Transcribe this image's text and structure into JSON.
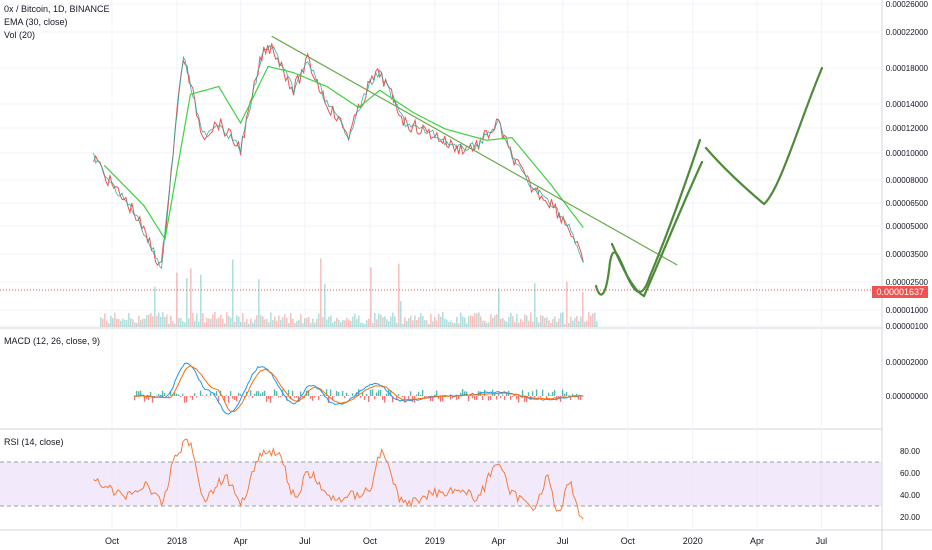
{
  "legend": {
    "symbol": "0x / Bitcoin, 1D, BINANCE",
    "ema": "EMA (30, close)",
    "vol": "Vol (20)",
    "macd": "MACD (12, 26, close, 9)",
    "rsi": "RSI (14, close)"
  },
  "price_label": "0.00001637",
  "colors": {
    "price": "#26a69a",
    "price_down": "#ef5350",
    "ema": "#3ed13e",
    "trendline": "#6aaa4a",
    "drawing": "#4e8a3a",
    "macd": "#2196f3",
    "signal": "#ff6d00",
    "rsi": "#f57c40",
    "rsi_band": "#eadcf8",
    "price_line": "#ef5350"
  },
  "chart_data": [
    {
      "type": "line",
      "panel": "price",
      "title": "0x / Bitcoin, 1D, BINANCE",
      "y_scale": "log",
      "y_ticks": [
        "0.00026000",
        "0.00022000",
        "0.00018000",
        "0.00014000",
        "0.00012000",
        "0.00010000",
        "0.00008000",
        "0.00006500",
        "0.00005000",
        "0.00003500",
        "0.00002500",
        "0.00001637",
        "0.00001000",
        "0.00000100"
      ],
      "x_ticks": [
        "Oct",
        "2018",
        "Apr",
        "Jul",
        "Oct",
        "2019",
        "Apr",
        "Jul",
        "Oct",
        "2020",
        "Apr",
        "Jul"
      ],
      "series": [
        {
          "name": "price",
          "x": [
            "2017-09-05",
            "2017-10-01",
            "2017-11-01",
            "2017-12-10",
            "2018-01-01",
            "2018-01-10",
            "2018-02-06",
            "2018-03-01",
            "2018-04-01",
            "2018-05-01",
            "2018-05-15",
            "2018-06-15",
            "2018-07-05",
            "2018-08-01",
            "2018-09-01",
            "2018-10-01",
            "2018-10-15",
            "2018-11-20",
            "2019-01-01",
            "2019-02-01",
            "2019-03-01",
            "2019-04-01",
            "2019-04-15",
            "2019-05-15",
            "2019-06-15",
            "2019-07-10",
            "2019-07-30"
          ],
          "y": [
            5.5e-05,
            4e-05,
            3e-05,
            1.6e-05,
            9e-05,
            0.00017,
            7e-05,
            8e-05,
            6e-05,
            0.00017,
            0.00019,
            0.000115,
            0.00016,
            0.0001,
            7e-05,
            0.000125,
            0.00014,
            8e-05,
            7e-05,
            6e-05,
            6.2e-05,
            8e-05,
            6e-05,
            4e-05,
            3.3e-05,
            2.5e-05,
            1.7e-05
          ]
        },
        {
          "name": "EMA (30, close)",
          "x": [
            "2017-09-20",
            "2017-11-15",
            "2017-12-15",
            "2018-01-20",
            "2018-03-01",
            "2018-04-01",
            "2018-05-10",
            "2018-06-15",
            "2018-08-01",
            "2018-09-15",
            "2018-10-15",
            "2018-12-01",
            "2019-01-15",
            "2019-03-15",
            "2019-04-20",
            "2019-06-15",
            "2019-07-30"
          ],
          "y": [
            5e-05,
            3.2e-05,
            2.2e-05,
            0.00011,
            0.00012,
            8e-05,
            0.00015,
            0.00014,
            0.00012,
            9.5e-05,
            0.000115,
            9e-05,
            7.5e-05,
            6.6e-05,
            6.8e-05,
            4e-05,
            2.5e-05
          ]
        }
      ],
      "annotations": [
        {
          "kind": "trendline",
          "from": [
            "2018-05-15",
            0.00021
          ],
          "to": [
            "2019-12-10",
            1.65e-05
          ]
        },
        {
          "kind": "hline",
          "y": 1.637e-05
        }
      ]
    },
    {
      "type": "bar",
      "panel": "volume",
      "title": "Vol (20)",
      "note": "volume bars along the bottom of the price panel"
    },
    {
      "type": "line",
      "panel": "macd",
      "title": "MACD (12, 26, close, 9)",
      "y_ticks": [
        "0.00002000",
        "0.00000000"
      ],
      "series": [
        {
          "name": "MACD",
          "x": [
            "2017-11-01",
            "2017-12-15",
            "2018-01-15",
            "2018-02-15",
            "2018-03-15",
            "2018-05-01",
            "2018-06-15",
            "2018-07-10",
            "2018-08-15",
            "2018-10-10",
            "2018-11-15",
            "2019-01-15",
            "2019-04-01",
            "2019-06-01",
            "2019-07-30"
          ],
          "y": [
            0.0,
            -5e-07,
            1.9e-05,
            3e-06,
            -1e-05,
            1.7e-05,
            -4e-06,
            6e-06,
            -5e-06,
            7e-06,
            -3e-06,
            0.0,
            2e-06,
            -2e-06,
            0.0
          ]
        },
        {
          "name": "Signal",
          "x": [
            "2017-11-01",
            "2017-12-20",
            "2018-01-20",
            "2018-02-25",
            "2018-03-20",
            "2018-05-05",
            "2018-06-20",
            "2018-07-15",
            "2018-08-20",
            "2018-10-15",
            "2018-11-20",
            "2019-01-20",
            "2019-04-05",
            "2019-06-05",
            "2019-07-30"
          ],
          "y": [
            0.0,
            -1e-06,
            1.7e-05,
            4e-06,
            -9e-06,
            1.5e-05,
            -3e-06,
            5e-06,
            -4e-06,
            6e-06,
            -2e-06,
            0.0,
            1.5e-06,
            -1.5e-06,
            0.0
          ]
        }
      ]
    },
    {
      "type": "line",
      "panel": "rsi",
      "title": "RSI (14, close)",
      "y_ticks": [
        "80.00",
        "60.00",
        "40.00",
        "20.00"
      ],
      "band": [
        30,
        70
      ],
      "series": [
        {
          "name": "RSI",
          "x": [
            "2017-09-05",
            "2017-10-15",
            "2017-11-20",
            "2017-12-10",
            "2018-01-01",
            "2018-01-15",
            "2018-02-10",
            "2018-03-10",
            "2018-04-01",
            "2018-05-01",
            "2018-05-20",
            "2018-06-20",
            "2018-07-05",
            "2018-08-10",
            "2018-09-10",
            "2018-10-01",
            "2018-10-15",
            "2018-11-20",
            "2019-01-01",
            "2019-02-01",
            "2019-03-01",
            "2019-04-01",
            "2019-04-20",
            "2019-05-20",
            "2019-06-10",
            "2019-06-25",
            "2019-07-10",
            "2019-07-30"
          ],
          "y": [
            54,
            40,
            48,
            33,
            78,
            90,
            38,
            55,
            35,
            78,
            80,
            38,
            60,
            36,
            40,
            45,
            78,
            32,
            42,
            45,
            38,
            70,
            40,
            30,
            55,
            22,
            50,
            18
          ]
        }
      ]
    }
  ]
}
